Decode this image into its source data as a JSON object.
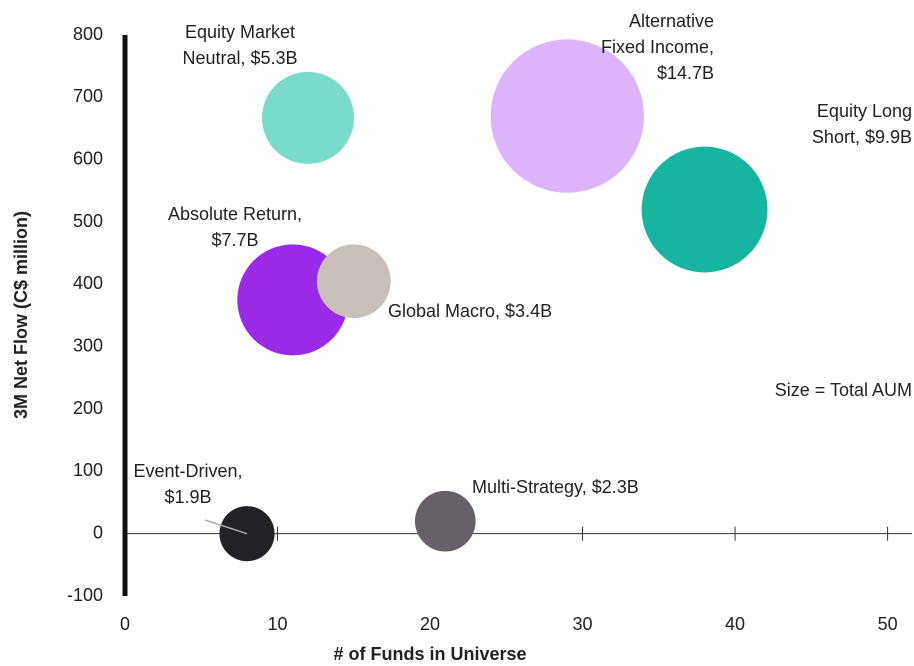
{
  "chart_data": {
    "type": "bubble",
    "x_label": "# of Funds in Universe",
    "y_label": "3M Net Flow (C$ million)",
    "annotation": "Size = Total AUM",
    "xlim": [
      0,
      51.6
    ],
    "xticks": [
      0,
      10,
      20,
      30,
      40,
      50
    ],
    "ylim": [
      -100,
      800
    ],
    "yticks": [
      -100,
      0,
      100,
      200,
      300,
      400,
      500,
      600,
      700,
      800
    ],
    "points": [
      {
        "label": [
          "Equity Market",
          "Neutral, $5.3B"
        ],
        "x": 12,
        "y": 667,
        "size": 5.3,
        "color": "#79dccb"
      },
      {
        "label": [
          "Alternative",
          "Fixed Income,",
          "$14.7B"
        ],
        "x": 29,
        "y": 670,
        "size": 14.7,
        "color": "#dcb4fb"
      },
      {
        "label": [
          "Equity Long",
          "Short, $9.9B"
        ],
        "x": 38,
        "y": 520,
        "size": 9.9,
        "color": "#17b5a0"
      },
      {
        "label": [
          "Absolute Return,",
          "$7.7B"
        ],
        "x": 11,
        "y": 375,
        "size": 7.7,
        "color": "#9a2ae8"
      },
      {
        "label": [
          "Global Macro, $3.4B"
        ],
        "x": 15,
        "y": 405,
        "size": 3.4,
        "color": "#c8c0b8"
      },
      {
        "label": [
          "Event-Driven,",
          "$1.9B"
        ],
        "x": 8,
        "y": 0,
        "size": 1.9,
        "color": "#222226"
      },
      {
        "label": [
          "Multi-Strategy, $2.3B"
        ],
        "x": 21,
        "y": 20,
        "size": 2.3,
        "color": "#666068"
      }
    ]
  }
}
